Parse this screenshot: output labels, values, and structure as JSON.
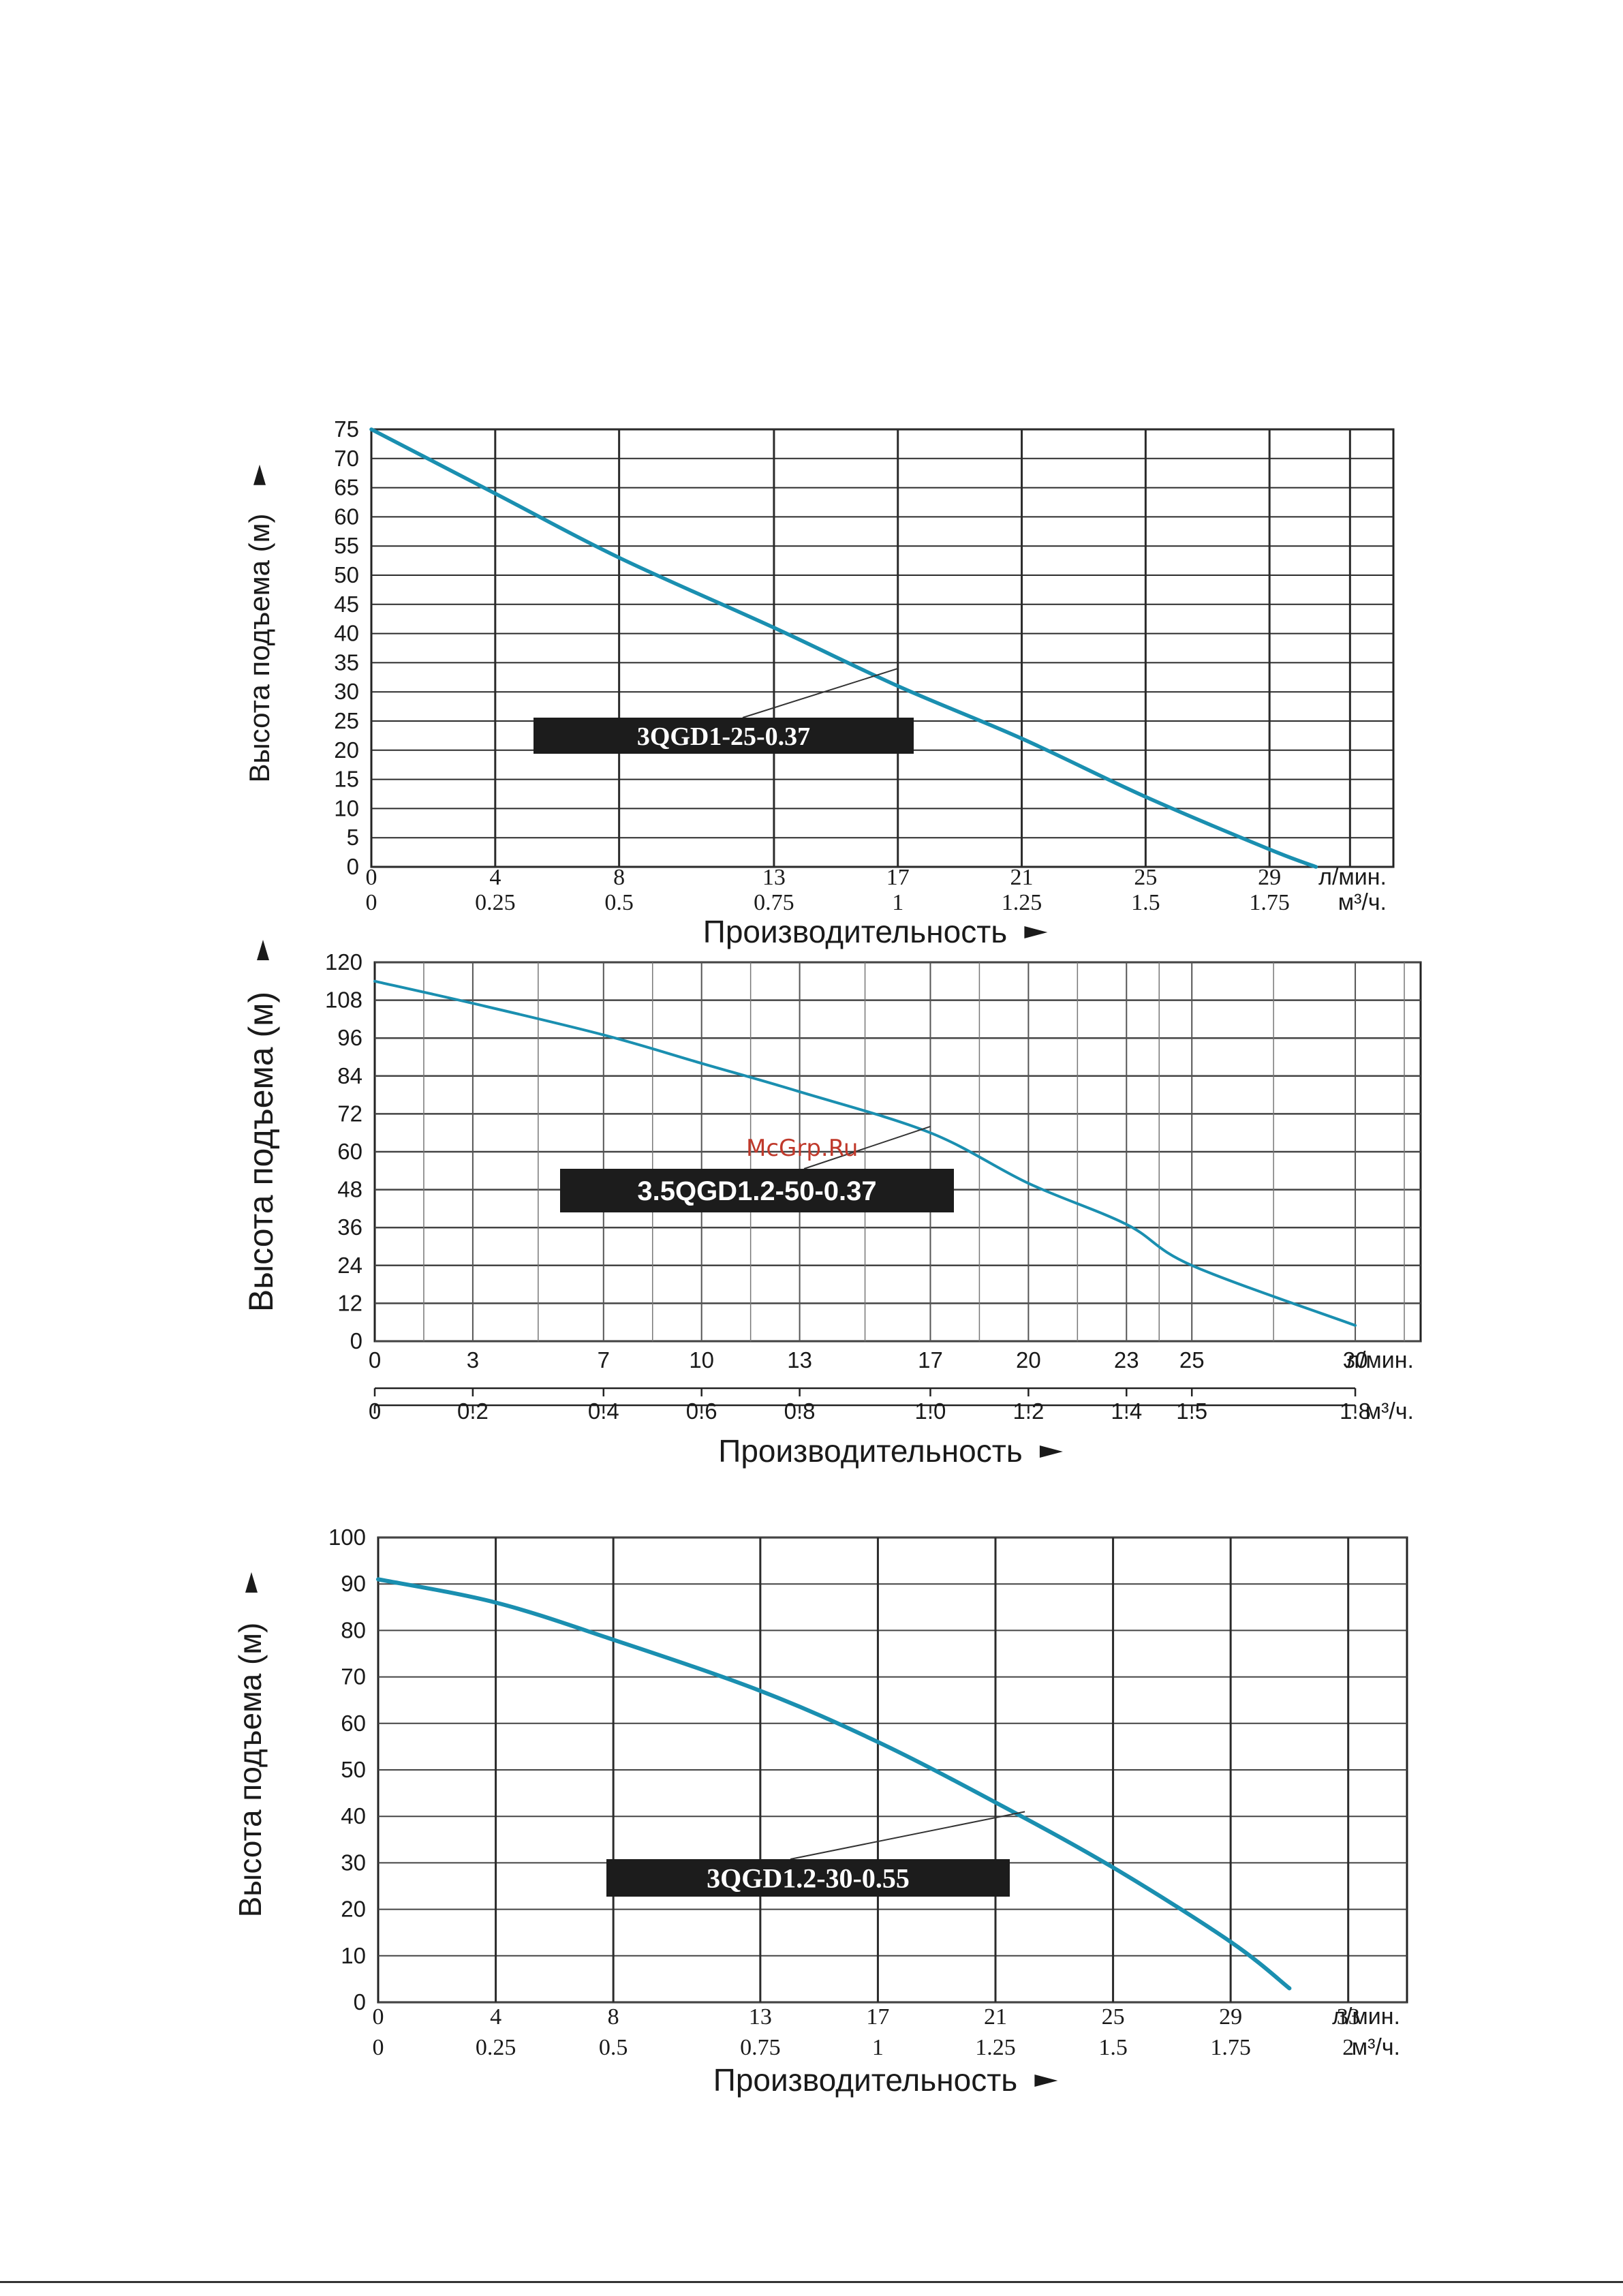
{
  "watermark": "McGrp.Ru",
  "chart_data": [
    {
      "type": "line",
      "model_label": "3QGD1-25-0.37",
      "ylabel": "Высота подъема (м)",
      "xlabel": "Производительность",
      "x_unit_primary": "л/мин.",
      "x_unit_secondary": "м³/ч.",
      "ylim": [
        0,
        75
      ],
      "y_ticks": [
        0,
        5,
        10,
        15,
        20,
        25,
        30,
        35,
        40,
        45,
        50,
        55,
        60,
        65,
        70,
        75
      ],
      "x_ticks_primary": [
        "0",
        "4",
        "8",
        "13",
        "17",
        "21",
        "25",
        "29"
      ],
      "x_ticks_secondary": [
        "0",
        "0.25",
        "0.5",
        "0.75",
        "1",
        "1.25",
        "1.5",
        "1.75"
      ],
      "grid": true,
      "series": [
        {
          "x": [
            0,
            4,
            8,
            13,
            17,
            21,
            25,
            29,
            30.5
          ],
          "y": [
            75,
            64,
            53,
            41,
            31,
            22,
            12,
            3,
            0
          ]
        }
      ]
    },
    {
      "type": "line",
      "model_label": "3.5QGD1.2-50-0.37",
      "ylabel": "Высота подъема (м)",
      "xlabel": "Производительность",
      "x_unit_primary": "л/мин.",
      "x_unit_secondary": "м³/ч.",
      "ylim": [
        0,
        120
      ],
      "y_ticks": [
        0,
        12,
        24,
        36,
        48,
        60,
        72,
        84,
        96,
        108,
        120
      ],
      "x_ticks_primary": [
        "0",
        "3",
        "7",
        "10",
        "13",
        "17",
        "20",
        "23",
        "25",
        "30"
      ],
      "x_ticks_secondary": [
        "0",
        "0.2",
        "0.4",
        "0.6",
        "0.8",
        "1.0",
        "1.2",
        "1.4",
        "1.5",
        "1.8"
      ],
      "grid": true,
      "series": [
        {
          "x": [
            0,
            3,
            7,
            10,
            13,
            17,
            20,
            23,
            25,
            30
          ],
          "y": [
            114,
            107,
            97,
            88,
            79,
            66,
            50,
            37,
            24,
            5
          ]
        }
      ]
    },
    {
      "type": "line",
      "model_label": "3QGD1.2-30-0.55",
      "ylabel": "Высота подъема (м)",
      "xlabel": "Производительность",
      "x_unit_primary": "л/мин.",
      "x_unit_secondary": "м³/ч.",
      "ylim": [
        0,
        100
      ],
      "y_ticks": [
        0,
        10,
        20,
        30,
        40,
        50,
        60,
        70,
        80,
        90,
        100
      ],
      "x_ticks_primary": [
        "0",
        "4",
        "8",
        "13",
        "17",
        "21",
        "25",
        "29",
        "33"
      ],
      "x_ticks_secondary": [
        "0",
        "0.25",
        "0.5",
        "0.75",
        "1",
        "1.25",
        "1.5",
        "1.75",
        "2"
      ],
      "grid": true,
      "series": [
        {
          "x": [
            0,
            4,
            8,
            13,
            17,
            21,
            25,
            29,
            31
          ],
          "y": [
            91,
            86,
            78,
            67,
            56,
            43,
            29,
            13,
            3
          ]
        }
      ]
    }
  ]
}
